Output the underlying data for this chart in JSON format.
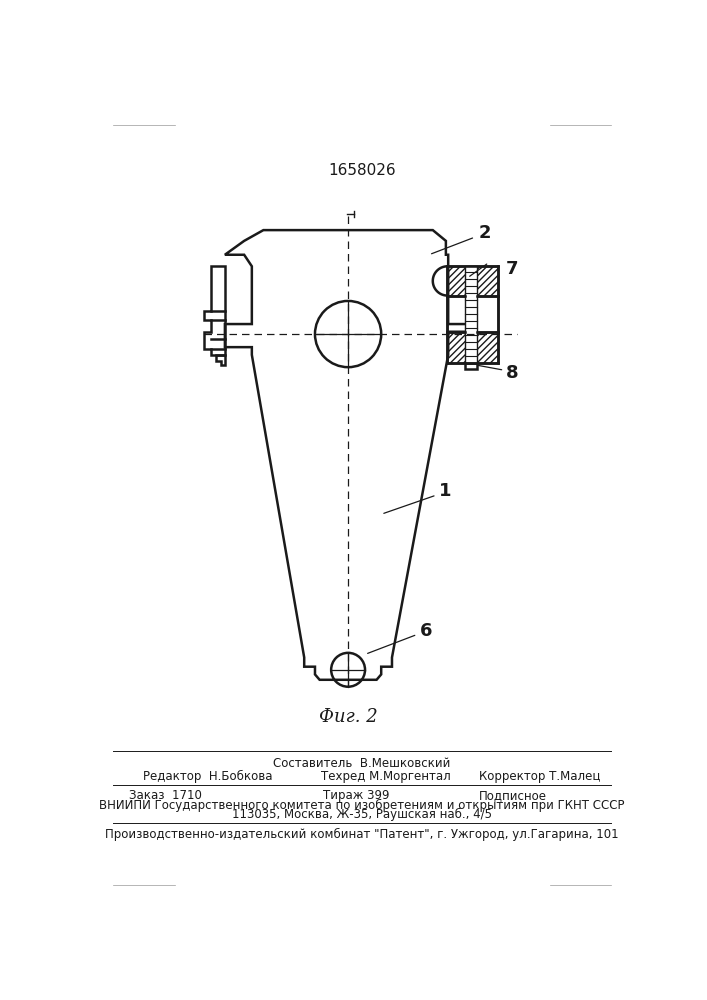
{
  "patent_number": "1658026",
  "fig_label": "Фиг. 2",
  "bg_color": "#ffffff",
  "line_color": "#1a1a1a",
  "footer": {
    "line0_center": "Составитель  В.Мешковский",
    "line1_left": "Редактор  Н.Бобкова",
    "line1_center": "Техред М.Моргентал",
    "line1_right": "Корректор Т.Малец",
    "line2_left": "Заказ  1710",
    "line2_center": "Тираж 399",
    "line2_right": "Подписное",
    "line3": "ВНИИПИ Государственного комитета по изобретениям и открытиям при ГКНТ СССР",
    "line4": "113035, Москва, Ж-35, Раушская наб., 4/5",
    "line5": "Производственно-издательский комбинат \"Патент\", г. Ужгород, ул.Гагарина, 101"
  }
}
